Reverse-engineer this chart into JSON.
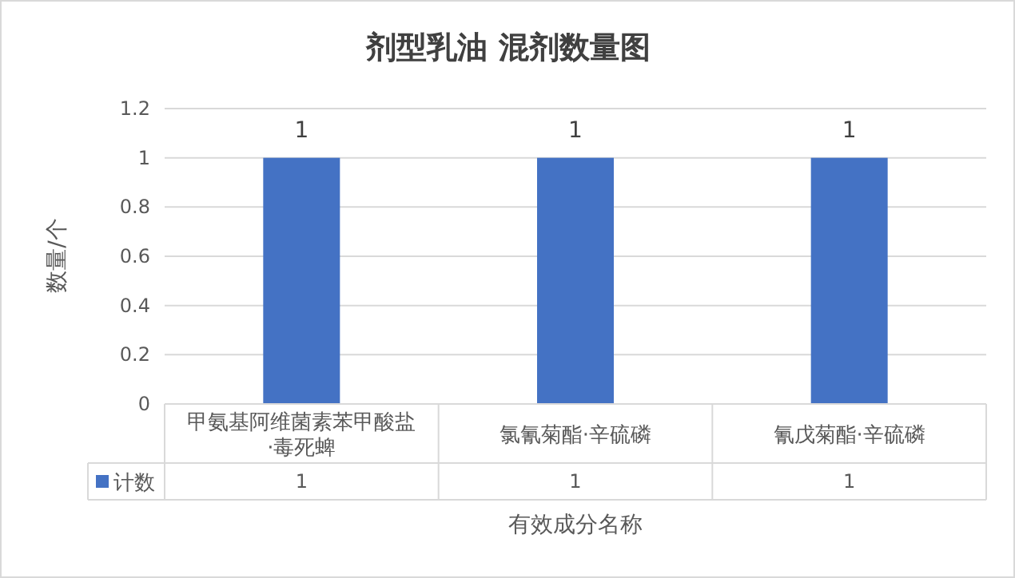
{
  "chart_data": {
    "type": "bar",
    "title": "剂型乳油 混剂数量图",
    "xlabel": "有效成分名称",
    "ylabel": "数量/个",
    "categories": [
      "甲氨基阿维菌素苯甲酸盐·毒死蜱",
      "氯氰菊酯·辛硫磷",
      "氰戊菊酯·辛硫磷"
    ],
    "series": [
      {
        "name": "计数",
        "color": "#4472c4",
        "values": [
          1,
          1,
          1
        ]
      }
    ],
    "ylim": [
      0,
      1.2
    ],
    "yticks": [
      0,
      0.2,
      0.4,
      0.6,
      0.8,
      1,
      1.2
    ],
    "annotations": [
      "1",
      "1",
      "1"
    ],
    "grid": "y",
    "data_labels": true,
    "legend": "bottom"
  }
}
